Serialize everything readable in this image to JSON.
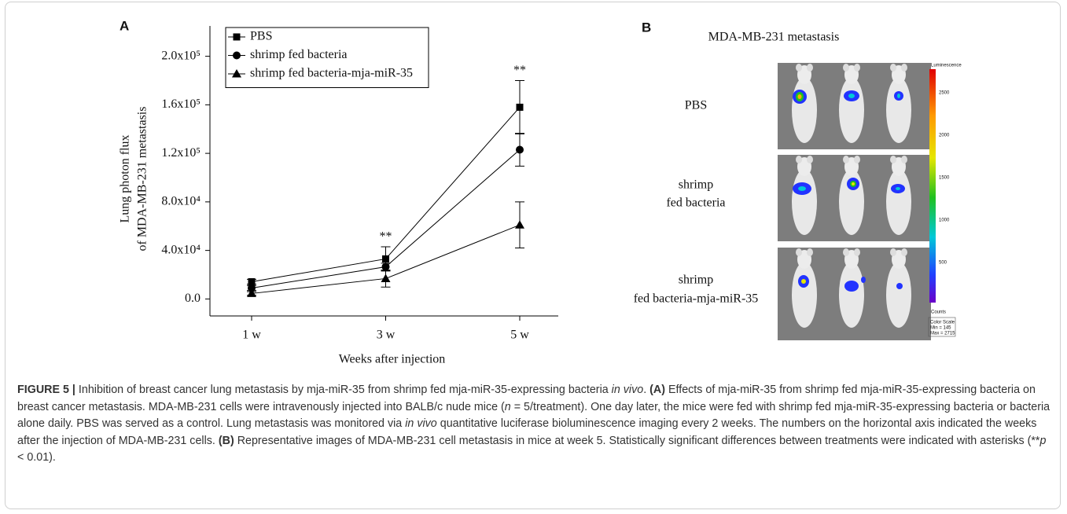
{
  "panel_a": {
    "label": "A"
  },
  "chart_data": {
    "type": "line",
    "categories": [
      "1 w",
      "3 w",
      "5 w"
    ],
    "series": [
      {
        "name": "PBS",
        "color": "#000000",
        "marker": "square",
        "values": [
          14200,
          33000,
          158000
        ],
        "errors": [
          2000,
          10000,
          22000
        ]
      },
      {
        "name": "shrimp fed bacteria",
        "color": "#000000",
        "marker": "circle",
        "values": [
          9000,
          26500,
          123000
        ],
        "errors": [
          2000,
          3000,
          13500
        ]
      },
      {
        "name": "shrimp fed bacteria-mja-miR-35",
        "color": "#000000",
        "marker": "triangle",
        "values": [
          4500,
          16800,
          61000
        ],
        "errors": [
          1500,
          7000,
          19000
        ]
      }
    ],
    "ylim": [
      -14000,
      225000
    ],
    "yticks": [
      {
        "value": 0,
        "label": "0.0"
      },
      {
        "value": 40000,
        "label": "4.0x10⁴"
      },
      {
        "value": 80000,
        "label": "8.0x10⁴"
      },
      {
        "value": 120000,
        "label": "1.2x10⁵"
      },
      {
        "value": 160000,
        "label": "1.6x10⁵"
      },
      {
        "value": 200000,
        "label": "2.0x10⁵"
      }
    ],
    "ylabel": [
      "Lung photon flux",
      "of MDA-MB-231 metastasis"
    ],
    "xlabel": "Weeks after injection",
    "annotations": [
      {
        "text": "**",
        "x": "3 w"
      },
      {
        "text": "**",
        "x": "5 w"
      }
    ],
    "legend": "upper-left"
  },
  "panel_b": {
    "label": "B",
    "title": "MDA-MB-231 metastasis",
    "rows": [
      [
        "PBS"
      ],
      [
        "shrimp",
        "fed bacteria"
      ],
      [
        "shrimp",
        "fed bacteria-mja-miR-35"
      ]
    ],
    "colorbar": {
      "title": "Luminescence",
      "ticks": [
        "2500",
        "2000",
        "1500",
        "1000",
        "500"
      ],
      "unit": "Counts",
      "scale": [
        "Color Scale",
        "Min = 145",
        "Max = 2715"
      ]
    }
  },
  "caption": {
    "runs": [
      "FIGURE 5 |",
      " Inhibition of breast cancer lung metastasis by mja-miR-35 from shrimp fed mja-miR-35-expressing bacteria ",
      "in vivo",
      ". ",
      "(A)",
      " Effects of mja-miR-35 from shrimp fed mja-miR-35-expressing bacteria on breast cancer metastasis. MDA-MB-231 cells were intravenously injected into BALB/c nude mice (",
      "n",
      " = 5/treatment). One day later, the mice were fed with shrimp fed mja-miR-35-expressing bacteria or bacteria alone daily. PBS was served as a control. Lung metastasis was monitored via ",
      "in vivo",
      " quantitative luciferase bioluminescence imaging every 2 weeks. The numbers on the horizontal axis indicated the weeks after the injection of MDA-MB-231 cells. ",
      "(B)",
      " Representative images of MDA-MB-231 cell metastasis in mice at week 5. Statistically significant differences between treatments were indicated with asterisks (**",
      "p",
      " < 0.01)."
    ]
  }
}
